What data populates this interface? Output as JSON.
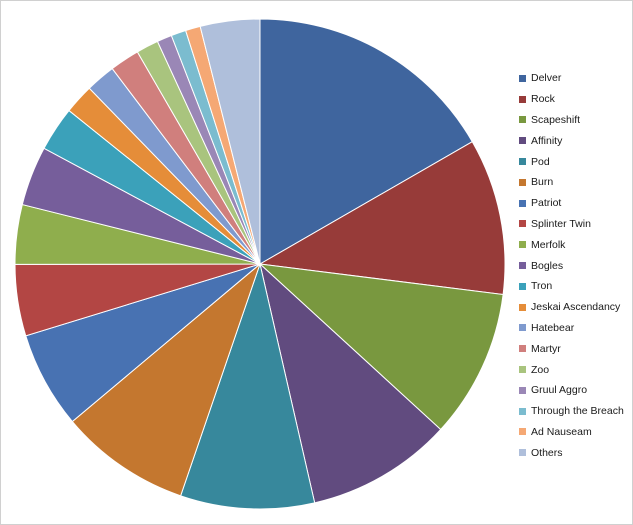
{
  "chart_data": {
    "type": "pie",
    "title": "",
    "legend_position": "right",
    "slices": [
      {
        "label": "Delver",
        "value": 17.0,
        "color": "#3f659e"
      },
      {
        "label": "Rock",
        "value": 10.5,
        "color": "#973b39"
      },
      {
        "label": "Scapeshift",
        "value": 10.0,
        "color": "#79983f"
      },
      {
        "label": "Affinity",
        "value": 9.8,
        "color": "#614b7f"
      },
      {
        "label": "Pod",
        "value": 9.0,
        "color": "#37889c"
      },
      {
        "label": "Burn",
        "value": 8.8,
        "color": "#c4772f"
      },
      {
        "label": "Patriot",
        "value": 6.5,
        "color": "#4872b2"
      },
      {
        "label": "Splinter Twin",
        "value": 4.8,
        "color": "#b34644"
      },
      {
        "label": "Merfolk",
        "value": 4.0,
        "color": "#8fae4d"
      },
      {
        "label": "Bogles",
        "value": 4.0,
        "color": "#765e9b"
      },
      {
        "label": "Tron",
        "value": 3.0,
        "color": "#3ba1ba"
      },
      {
        "label": "Jeskai Ascendancy",
        "value": 2.0,
        "color": "#e58d39"
      },
      {
        "label": "Hatebear",
        "value": 2.0,
        "color": "#7f9ace"
      },
      {
        "label": "Martyr",
        "value": 2.0,
        "color": "#d07f7d"
      },
      {
        "label": "Zoo",
        "value": 1.5,
        "color": "#a9c47e"
      },
      {
        "label": "Gruul Aggro",
        "value": 1.0,
        "color": "#9a87b6"
      },
      {
        "label": "Through the Breach",
        "value": 1.0,
        "color": "#7bbccf"
      },
      {
        "label": "Ad Nauseam",
        "value": 1.0,
        "color": "#f5a874"
      },
      {
        "label": "Others",
        "value": 4.0,
        "color": "#afbfdb"
      }
    ]
  }
}
